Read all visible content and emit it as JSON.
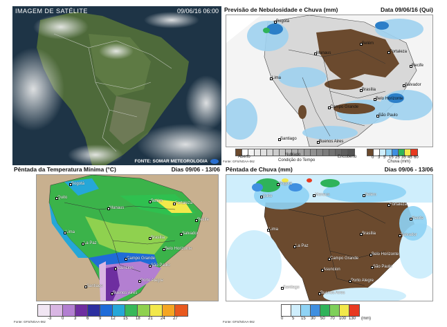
{
  "satellite": {
    "title": "IMAGEM DE SATÉLITE",
    "datetime": "09/06/16 06:00",
    "credit": "FONTE: SOMAR METEOROLOGIA"
  },
  "cloud_forecast": {
    "title": "Previsão de Nebulosidade e Chuva (mm)",
    "date": "Data 09/06/16 (Qui)",
    "cities": [
      "Bogotá",
      "Manaus",
      "Belém",
      "Fortaleza",
      "Recife",
      "Lima",
      "Brasília",
      "Salvador",
      "Belo Horizonte",
      "Campo Grande",
      "São Paulo",
      "Santiago",
      "Buenos Aires"
    ],
    "sky_legend": {
      "open": "Aberto",
      "cloudy": "Nublado",
      "overcast": "Encoberto",
      "caption": "Condição do Tempo"
    },
    "rain_legend": {
      "ticks": [
        "0",
        "3",
        "5",
        "15",
        "25",
        "35",
        "45",
        "60"
      ],
      "caption": "Chuva (mm)"
    },
    "source": "Fonte: GFS/NOAA-06z"
  },
  "min_temp": {
    "title": "Pêntada da Temperatura Mínima (°C)",
    "dates": "Dias 09/06 - 13/06",
    "cities": [
      "Bogotá",
      "Quito",
      "Manaus",
      "Belém",
      "Fortaleza",
      "Recife",
      "Lima",
      "Brasília",
      "Salvador",
      "La Paz",
      "Belo Horizonte",
      "Campo Grande",
      "São Paulo",
      "Asuncion",
      "Porto Alegre",
      "Santiago",
      "Buenos Aires"
    ],
    "legend_ticks": [
      "-3",
      "0",
      "3",
      "6",
      "9",
      "12",
      "15",
      "18",
      "21",
      "24",
      "27"
    ],
    "legend_colors": [
      "#f1e6f3",
      "#d9b6e3",
      "#b37fd1",
      "#6e2ea0",
      "#2c2fa0",
      "#1f6cd8",
      "#25a7d8",
      "#38b85a",
      "#8fd14f",
      "#f2e84b",
      "#f5a623",
      "#e8591f"
    ],
    "source": "Fonte: GFS/NOAA-06z"
  },
  "rain_pentad": {
    "title": "Pêntada de Chuva (mm)",
    "dates": "Dias 09/06 - 13/06",
    "cities": [
      "Bogotá",
      "Quito",
      "Manaus",
      "Belém",
      "Fortaleza",
      "Recife",
      "Lima",
      "Brasília",
      "Salvador",
      "La Paz",
      "Belo Horizonte",
      "Campo Grande",
      "São Paulo",
      "Asuncion",
      "Porto Alegre",
      "Santiago",
      "Buenos Aires"
    ],
    "legend_ticks": [
      "0",
      "5",
      "15",
      "30",
      "50",
      "70",
      "100",
      "130"
    ],
    "legend_unit": "(mm)",
    "legend_colors": [
      "#ffffff",
      "#cfeefc",
      "#8fd3f5",
      "#3f8fe0",
      "#2fb35a",
      "#7fd05a",
      "#f2e84b",
      "#e8391f"
    ],
    "source": "Fonte: GFS/NOAA-06z"
  },
  "colors": {
    "ocean_forecast": "#ffffff",
    "dry_brown": "#6b4a2e",
    "rain_blue": "#9fd2f0",
    "land_gray": "#d8d8d8",
    "tan_land": "#c8b08f"
  }
}
